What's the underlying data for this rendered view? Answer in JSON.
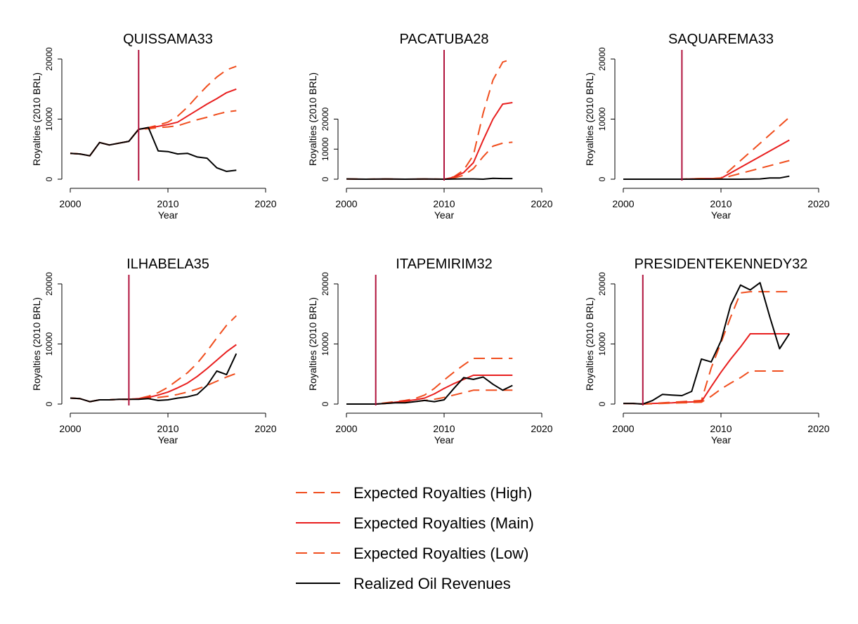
{
  "figure": {
    "legend_position": "bottom-center",
    "legend": [
      {
        "label": "Expected Royalties (High)",
        "color": "#F04E1E",
        "style": "dashed"
      },
      {
        "label": "Expected Royalties (Main)",
        "color": "#E81E1E",
        "style": "solid"
      },
      {
        "label": "Expected Royalties (Low)",
        "color": "#F04E1E",
        "style": "dashed"
      },
      {
        "label": "Realized Oil Revenues",
        "color": "#000000",
        "style": "solid"
      }
    ],
    "treatment_line_color": "#B0123C"
  },
  "chart_data": [
    {
      "type": "line",
      "title": "QUISSAMA33",
      "xlabel": "Year",
      "ylabel": "Royalties (2010 BRL)",
      "xlim": [
        2000,
        2020
      ],
      "ylim": [
        0,
        20000
      ],
      "xticks": [
        2000,
        2010,
        2020
      ],
      "yticks": [
        0,
        10000,
        20000
      ],
      "grid": false,
      "treatment_year": 2007,
      "series": [
        {
          "name": "Realized Oil Revenues",
          "x": [
            2000,
            2001,
            2002,
            2003,
            2004,
            2005,
            2006,
            2007,
            2008,
            2009,
            2010,
            2011,
            2012,
            2013,
            2014,
            2015,
            2016,
            2017
          ],
          "y": [
            4300,
            4200,
            3900,
            6100,
            5700,
            6000,
            6300,
            8300,
            8600,
            4700,
            4600,
            4200,
            4300,
            3700,
            3500,
            1900,
            1300,
            1500
          ]
        },
        {
          "name": "Expected Royalties (High)",
          "x": [
            2000,
            2001,
            2002,
            2003,
            2004,
            2005,
            2006,
            2007,
            2008,
            2009,
            2010,
            2011,
            2012,
            2013,
            2014,
            2015,
            2016,
            2017
          ],
          "y": [
            4300,
            4200,
            3900,
            6100,
            5700,
            6000,
            6300,
            8300,
            8600,
            9000,
            9500,
            10500,
            12000,
            13800,
            15500,
            17000,
            18200,
            18800
          ]
        },
        {
          "name": "Expected Royalties (Main)",
          "x": [
            2000,
            2001,
            2002,
            2003,
            2004,
            2005,
            2006,
            2007,
            2008,
            2009,
            2010,
            2011,
            2012,
            2013,
            2014,
            2015,
            2016,
            2017
          ],
          "y": [
            4300,
            4200,
            3900,
            6100,
            5700,
            6000,
            6300,
            8300,
            8500,
            8800,
            9100,
            9500,
            10500,
            11500,
            12500,
            13400,
            14400,
            15000
          ]
        },
        {
          "name": "Expected Royalties (Low)",
          "x": [
            2000,
            2001,
            2002,
            2003,
            2004,
            2005,
            2006,
            2007,
            2008,
            2009,
            2010,
            2011,
            2012,
            2013,
            2014,
            2015,
            2016,
            2017
          ],
          "y": [
            4300,
            4200,
            3900,
            6100,
            5700,
            6000,
            6300,
            8300,
            8400,
            8600,
            8700,
            8900,
            9400,
            9900,
            10300,
            10800,
            11200,
            11400
          ]
        }
      ]
    },
    {
      "type": "line",
      "title": "PACATUBA28",
      "xlabel": "Year",
      "ylabel": "Royalties (2010 BRL)",
      "xlim": [
        2000,
        2020
      ],
      "ylim": [
        0,
        40000
      ],
      "xticks": [
        2000,
        2010,
        2020
      ],
      "yticks": [
        0,
        10000,
        20000
      ],
      "grid": false,
      "treatment_year": 2010,
      "series": [
        {
          "name": "Realized Oil Revenues",
          "x": [
            2000,
            2002,
            2004,
            2006,
            2008,
            2010,
            2011,
            2012,
            2013,
            2014,
            2015,
            2016,
            2017
          ],
          "y": [
            100,
            0,
            50,
            0,
            50,
            0,
            50,
            100,
            100,
            0,
            300,
            200,
            200
          ]
        },
        {
          "name": "Expected Royalties (High)",
          "x": [
            2000,
            2002,
            2004,
            2006,
            2008,
            2010,
            2011,
            2012,
            2013,
            2014,
            2015,
            2016,
            2017
          ],
          "y": [
            100,
            0,
            50,
            0,
            50,
            0,
            800,
            3000,
            8000,
            22000,
            33000,
            39000,
            40000
          ]
        },
        {
          "name": "Expected Royalties (Main)",
          "x": [
            2000,
            2002,
            2004,
            2006,
            2008,
            2010,
            2011,
            2012,
            2013,
            2014,
            2015,
            2016,
            2017
          ],
          "y": [
            100,
            0,
            50,
            0,
            50,
            0,
            600,
            2200,
            5500,
            13000,
            20000,
            25000,
            25500
          ]
        },
        {
          "name": "Expected Royalties (Low)",
          "x": [
            2000,
            2002,
            2004,
            2006,
            2008,
            2010,
            2011,
            2012,
            2013,
            2014,
            2015,
            2016,
            2017
          ],
          "y": [
            100,
            0,
            50,
            0,
            50,
            0,
            400,
            1300,
            3500,
            7500,
            11000,
            12000,
            12300
          ]
        }
      ]
    },
    {
      "type": "line",
      "title": "SAQUAREMA33",
      "xlabel": "Year",
      "ylabel": "Royalties (2010 BRL)",
      "xlim": [
        2000,
        2020
      ],
      "ylim": [
        0,
        20000
      ],
      "xticks": [
        2000,
        2010,
        2020
      ],
      "yticks": [
        0,
        10000,
        20000
      ],
      "grid": false,
      "treatment_year": 2006,
      "series": [
        {
          "name": "Realized Oil Revenues",
          "x": [
            2000,
            2002,
            2004,
            2006,
            2008,
            2010,
            2012,
            2014,
            2015,
            2016,
            2017
          ],
          "y": [
            0,
            0,
            0,
            0,
            0,
            0,
            0,
            50,
            200,
            200,
            500
          ]
        },
        {
          "name": "Expected Royalties (High)",
          "x": [
            2000,
            2002,
            2004,
            2006,
            2008,
            2009,
            2010,
            2017
          ],
          "y": [
            0,
            0,
            0,
            0,
            100,
            100,
            200,
            10300
          ]
        },
        {
          "name": "Expected Royalties (Main)",
          "x": [
            2000,
            2002,
            2004,
            2006,
            2008,
            2009,
            2010,
            2017
          ],
          "y": [
            0,
            0,
            0,
            0,
            100,
            100,
            150,
            6500
          ]
        },
        {
          "name": "Expected Royalties (Low)",
          "x": [
            2000,
            2002,
            2004,
            2006,
            2008,
            2009,
            2010,
            2017
          ],
          "y": [
            0,
            0,
            0,
            0,
            100,
            100,
            100,
            3100
          ]
        }
      ]
    },
    {
      "type": "line",
      "title": "ILHABELA35",
      "xlabel": "Year",
      "ylabel": "Royalties (2010 BRL)",
      "xlim": [
        2000,
        2020
      ],
      "ylim": [
        0,
        20000
      ],
      "xticks": [
        2000,
        2010,
        2020
      ],
      "yticks": [
        0,
        10000,
        20000
      ],
      "grid": false,
      "treatment_year": 2006,
      "series": [
        {
          "name": "Realized Oil Revenues",
          "x": [
            2000,
            2001,
            2002,
            2003,
            2004,
            2005,
            2006,
            2007,
            2008,
            2009,
            2010,
            2011,
            2012,
            2013,
            2014,
            2015,
            2016,
            2017
          ],
          "y": [
            1000,
            900,
            400,
            700,
            700,
            800,
            800,
            800,
            900,
            600,
            700,
            1000,
            1200,
            1600,
            3100,
            5500,
            4900,
            8400
          ]
        },
        {
          "name": "Expected Royalties (High)",
          "x": [
            2000,
            2001,
            2002,
            2003,
            2004,
            2005,
            2006,
            2007,
            2008,
            2009,
            2010,
            2011,
            2012,
            2013,
            2014,
            2015,
            2016,
            2017
          ],
          "y": [
            1000,
            900,
            400,
            700,
            700,
            800,
            800,
            900,
            1300,
            1900,
            2800,
            4000,
            5200,
            6800,
            8800,
            11000,
            13100,
            14700
          ]
        },
        {
          "name": "Expected Royalties (Main)",
          "x": [
            2000,
            2001,
            2002,
            2003,
            2004,
            2005,
            2006,
            2007,
            2008,
            2009,
            2010,
            2011,
            2012,
            2013,
            2014,
            2015,
            2016,
            2017
          ],
          "y": [
            1000,
            900,
            400,
            700,
            700,
            800,
            800,
            900,
            1100,
            1500,
            2000,
            2700,
            3500,
            4600,
            5900,
            7300,
            8700,
            9900
          ]
        },
        {
          "name": "Expected Royalties (Low)",
          "x": [
            2000,
            2001,
            2002,
            2003,
            2004,
            2005,
            2006,
            2007,
            2008,
            2009,
            2010,
            2011,
            2012,
            2013,
            2014,
            2015,
            2016,
            2017
          ],
          "y": [
            1000,
            900,
            400,
            700,
            700,
            800,
            800,
            850,
            950,
            1100,
            1300,
            1600,
            2000,
            2500,
            3100,
            3800,
            4500,
            5100
          ]
        }
      ]
    },
    {
      "type": "line",
      "title": "ITAPEMIRIM32",
      "xlabel": "Year",
      "ylabel": "Royalties (2010 BRL)",
      "xlim": [
        2000,
        2020
      ],
      "ylim": [
        0,
        20000
      ],
      "xticks": [
        2000,
        2010,
        2020
      ],
      "yticks": [
        0,
        10000,
        20000
      ],
      "grid": false,
      "treatment_year": 2003,
      "series": [
        {
          "name": "Realized Oil Revenues",
          "x": [
            2000,
            2001,
            2002,
            2003,
            2004,
            2005,
            2006,
            2007,
            2008,
            2009,
            2010,
            2011,
            2012,
            2013,
            2014,
            2015,
            2016,
            2017
          ],
          "y": [
            0,
            0,
            0,
            0,
            100,
            200,
            200,
            400,
            600,
            400,
            700,
            2600,
            4400,
            4100,
            4500,
            3300,
            2300,
            3100
          ]
        },
        {
          "name": "Expected Royalties (High)",
          "x": [
            2000,
            2001,
            2002,
            2003,
            2004,
            2005,
            2006,
            2007,
            2008,
            2009,
            2010,
            2011,
            2012,
            2013,
            2014,
            2015,
            2016,
            2017
          ],
          "y": [
            0,
            0,
            0,
            0,
            200,
            400,
            600,
            900,
            1500,
            2600,
            4000,
            5300,
            6500,
            7600,
            7600,
            7600,
            7600,
            7600
          ]
        },
        {
          "name": "Expected Royalties (Main)",
          "x": [
            2000,
            2001,
            2002,
            2003,
            2004,
            2005,
            2006,
            2007,
            2008,
            2009,
            2010,
            2011,
            2012,
            2013,
            2014,
            2015,
            2016,
            2017
          ],
          "y": [
            0,
            0,
            0,
            0,
            100,
            300,
            500,
            700,
            1000,
            1700,
            2600,
            3400,
            4100,
            4800,
            4800,
            4800,
            4800,
            4800
          ]
        },
        {
          "name": "Expected Royalties (Low)",
          "x": [
            2000,
            2001,
            2002,
            2003,
            2004,
            2005,
            2006,
            2007,
            2008,
            2009,
            2010,
            2011,
            2012,
            2013,
            2014,
            2015,
            2016,
            2017
          ],
          "y": [
            0,
            0,
            0,
            0,
            100,
            200,
            300,
            400,
            600,
            800,
            1100,
            1500,
            1900,
            2300,
            2300,
            2300,
            2300,
            2300
          ]
        }
      ]
    },
    {
      "type": "line",
      "title": "PRESIDENTEKENNEDY32",
      "xlabel": "Year",
      "ylabel": "Royalties (2010 BRL)",
      "xlim": [
        2000,
        2020
      ],
      "ylim": [
        0,
        20000
      ],
      "xticks": [
        2000,
        2010,
        2020
      ],
      "yticks": [
        0,
        10000,
        20000
      ],
      "grid": false,
      "treatment_year": 2002,
      "series": [
        {
          "name": "Realized Oil Revenues",
          "x": [
            2000,
            2001,
            2002,
            2003,
            2004,
            2005,
            2006,
            2007,
            2008,
            2009,
            2010,
            2011,
            2012,
            2013,
            2014,
            2015,
            2016,
            2017
          ],
          "y": [
            100,
            100,
            0,
            600,
            1600,
            1500,
            1400,
            2100,
            7500,
            7000,
            10500,
            16500,
            19800,
            19000,
            20200,
            14500,
            9200,
            11700
          ]
        },
        {
          "name": "Expected Royalties (High)",
          "x": [
            2000,
            2001,
            2002,
            2003,
            2004,
            2005,
            2006,
            2007,
            2008,
            2009,
            2010,
            2011,
            2012,
            2013,
            2014,
            2015,
            2016,
            2017
          ],
          "y": [
            100,
            100,
            0,
            100,
            200,
            300,
            400,
            500,
            600,
            6000,
            10200,
            14500,
            18500,
            18700,
            18700,
            18700,
            18700,
            18700
          ]
        },
        {
          "name": "Expected Royalties (Main)",
          "x": [
            2000,
            2001,
            2002,
            2003,
            2004,
            2005,
            2006,
            2007,
            2008,
            2009,
            2010,
            2011,
            2012,
            2013,
            2014,
            2015,
            2016,
            2017
          ],
          "y": [
            100,
            100,
            0,
            100,
            150,
            200,
            300,
            350,
            400,
            2900,
            5300,
            7500,
            9500,
            11700,
            11700,
            11700,
            11700,
            11700
          ]
        },
        {
          "name": "Expected Royalties (Low)",
          "x": [
            2000,
            2001,
            2002,
            2003,
            2004,
            2005,
            2006,
            2007,
            2008,
            2009,
            2010,
            2011,
            2012,
            2013,
            2014,
            2015,
            2016,
            2017
          ],
          "y": [
            100,
            100,
            0,
            50,
            100,
            150,
            200,
            250,
            300,
            1300,
            2500,
            3500,
            4400,
            5500,
            5500,
            5500,
            5500,
            5500
          ]
        }
      ]
    }
  ]
}
